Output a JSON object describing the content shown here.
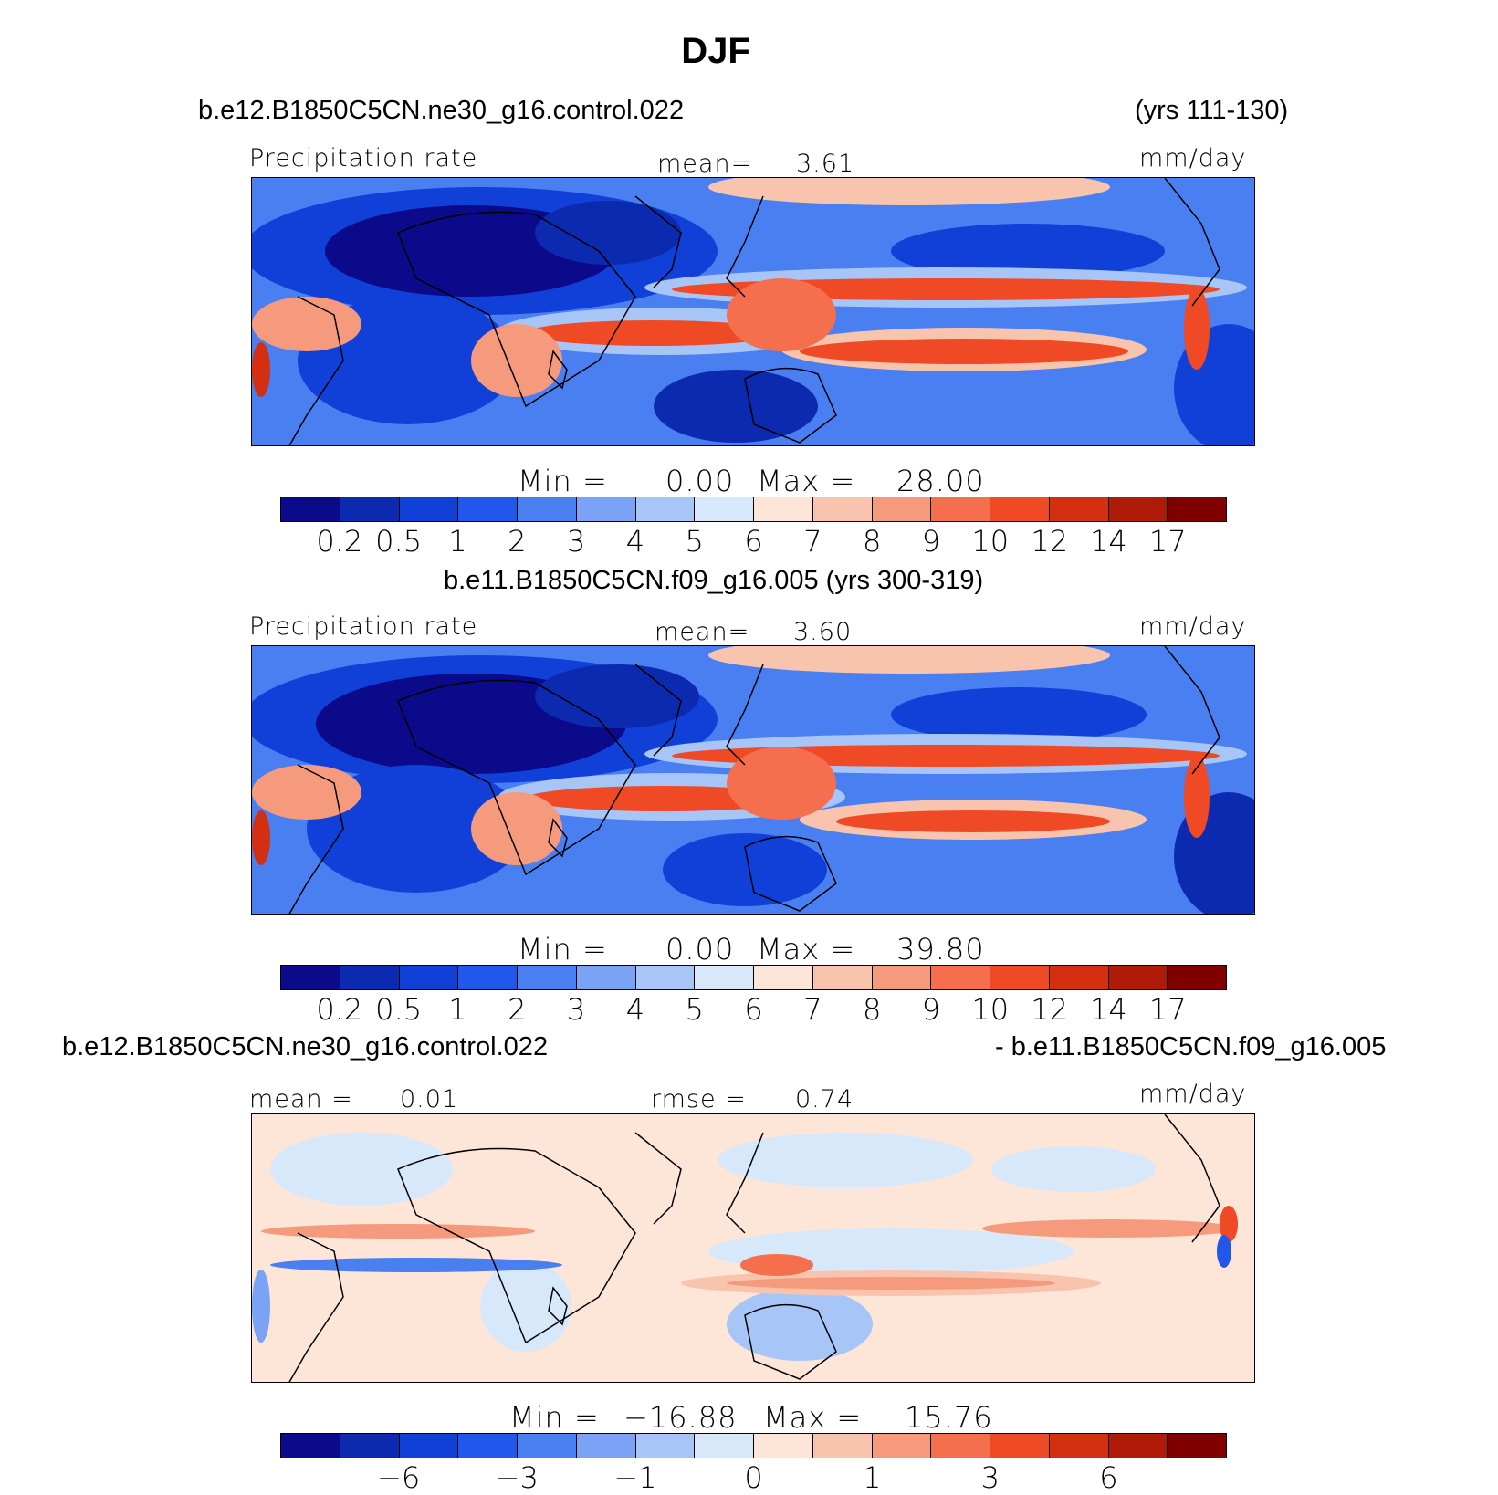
{
  "figure": {
    "title": "DJF"
  },
  "colors": {
    "palette": [
      "#0a0a8a",
      "#0c2ab0",
      "#1040d8",
      "#2257ee",
      "#4a7ff2",
      "#7aa3f5",
      "#a8c5f7",
      "#d8e8fb",
      "#fde6d8",
      "#f9c4ae",
      "#f69a7e",
      "#f56e4e",
      "#ef4a25",
      "#d42f10",
      "#b01a08",
      "#800000"
    ]
  },
  "chart_data": [
    {
      "type": "heatmap",
      "case_title": "b.e12.B1850C5CN.ne30_g16.control.022",
      "years": "(yrs 111-130)",
      "variable": "Precipitation rate",
      "units": "mm/day",
      "stat_label": "mean=",
      "stat_value": "3.61",
      "min_label": "Min =",
      "min_value": "0.00",
      "max_label": "Max =",
      "max_value": "28.00",
      "contour_levels": [
        "0.2",
        "0.5",
        "1",
        "2",
        "3",
        "4",
        "5",
        "6",
        "7",
        "8",
        "9",
        "10",
        "12",
        "14",
        "17"
      ]
    },
    {
      "type": "heatmap",
      "case_title": "b.e11.B1850C5CN.f09_g16.005 (yrs 300-319)",
      "variable": "Precipitation rate",
      "units": "mm/day",
      "stat_label": "mean=",
      "stat_value": "3.60",
      "min_label": "Min =",
      "min_value": "0.00",
      "max_label": "Max =",
      "max_value": "39.80",
      "contour_levels": [
        "0.2",
        "0.5",
        "1",
        "2",
        "3",
        "4",
        "5",
        "6",
        "7",
        "8",
        "9",
        "10",
        "12",
        "14",
        "17"
      ]
    },
    {
      "type": "heatmap",
      "case_title_left": "b.e12.B1850C5CN.ne30_g16.control.022",
      "case_title_right": "- b.e11.B1850C5CN.f09_g16.005",
      "units": "mm/day",
      "mean_label": "mean =",
      "mean_value": "0.01",
      "rmse_label": "rmse =",
      "rmse_value": "0.74",
      "min_label": "Min =",
      "min_value": "−16.88",
      "max_label": "Max =",
      "max_value": "15.76",
      "contour_levels": [
        "−6",
        "−3",
        "−1",
        "0",
        "1",
        "3",
        "6"
      ],
      "level_positions": [
        2,
        4,
        6,
        8,
        10,
        12,
        14
      ]
    }
  ]
}
